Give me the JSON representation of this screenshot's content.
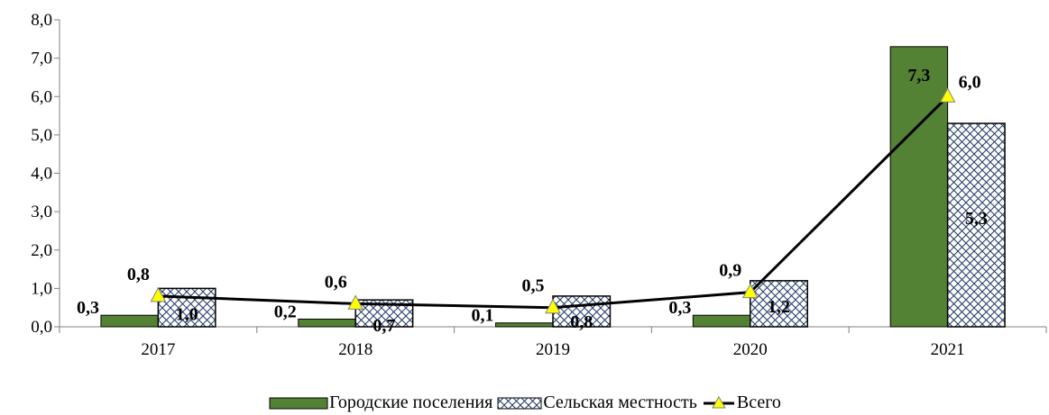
{
  "chart_data": {
    "type": "bar",
    "categories": [
      "2017",
      "2018",
      "2019",
      "2020",
      "2021"
    ],
    "series": [
      {
        "name": "Городские поселения",
        "kind": "bar",
        "color": "#548235",
        "values": [
          0.3,
          0.2,
          0.1,
          0.3,
          7.3
        ],
        "labels": [
          "0,3",
          "0,2",
          "0,1",
          "0,3",
          "7,3"
        ]
      },
      {
        "name": "Сельская местность",
        "kind": "bar",
        "pattern": "crosshatch",
        "color": "#ffffff",
        "values": [
          1.0,
          0.7,
          0.8,
          1.2,
          5.3
        ],
        "labels": [
          "1,0",
          "0,7",
          "0,8",
          "1,2",
          "5,3"
        ]
      },
      {
        "name": "Всего",
        "kind": "line",
        "color": "#000000",
        "marker": "triangle",
        "marker_color": "#ffff00",
        "values": [
          0.8,
          0.6,
          0.5,
          0.9,
          6.0
        ],
        "labels": [
          "0,8",
          "0,6",
          "0,5",
          "0,9",
          "6,0"
        ]
      }
    ],
    "ylim": [
      0,
      8
    ],
    "yticks": [
      "0,0",
      "1,0",
      "2,0",
      "3,0",
      "4,0",
      "5,0",
      "6,0",
      "7,0",
      "8,0"
    ],
    "grid": false,
    "legend_position": "bottom"
  }
}
